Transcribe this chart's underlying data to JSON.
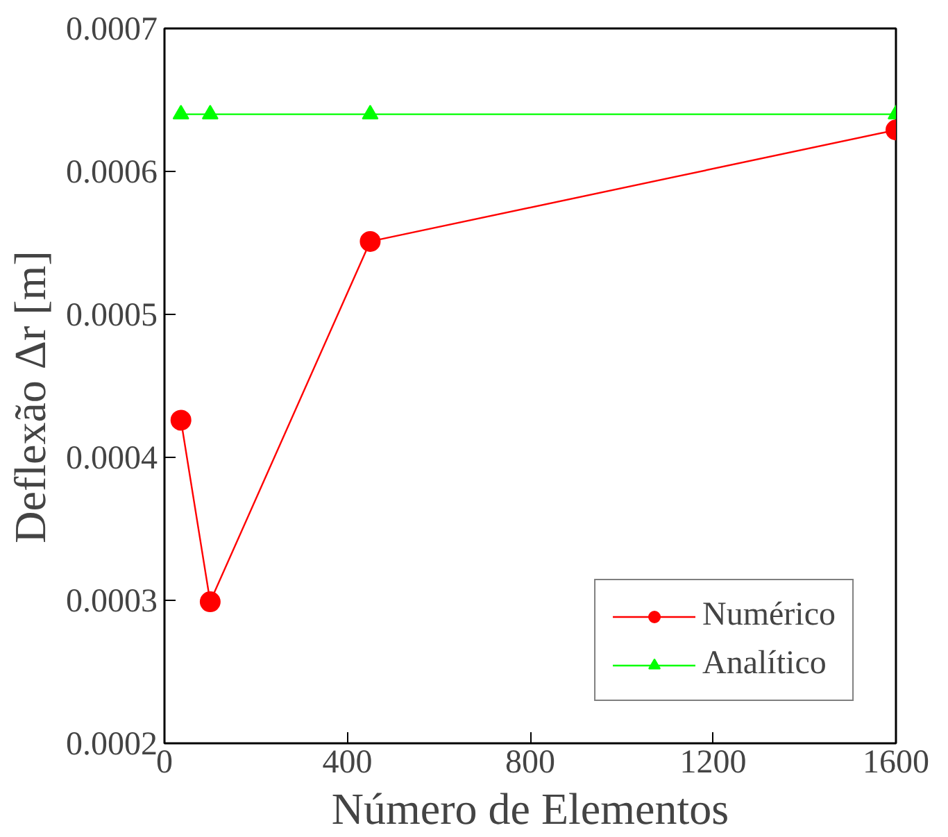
{
  "chart_data": {
    "type": "line",
    "xlabel": "Número de Elementos",
    "ylabel": "Deflexão  Δr  [m]",
    "x": [
      36,
      100,
      450,
      1600
    ],
    "series": [
      {
        "name": "Numérico",
        "color": "#ff0000",
        "marker": "circle",
        "values": [
          0.000426,
          0.000299,
          0.000551,
          0.000629
        ]
      },
      {
        "name": "Analítico",
        "color": "#00ff00",
        "marker": "triangle",
        "values": [
          0.00064,
          0.00064,
          0.00064,
          0.00064
        ]
      }
    ],
    "xlim": [
      0,
      1600
    ],
    "xticks": [
      0,
      400,
      800,
      1200,
      1600
    ],
    "ylim": [
      0.0002,
      0.0007
    ],
    "yticks": [
      {
        "value": 0.0002,
        "label": "0.0002"
      },
      {
        "value": 0.0003,
        "label": "0.0003"
      },
      {
        "value": 0.0004,
        "label": "0.0004"
      },
      {
        "value": 0.0005,
        "label": "0.0005"
      },
      {
        "value": 0.0006,
        "label": "0.0006"
      },
      {
        "value": 0.0007,
        "label": "0.0007"
      }
    ],
    "grid": false,
    "legend": "bottom right",
    "line_style": "solid"
  }
}
